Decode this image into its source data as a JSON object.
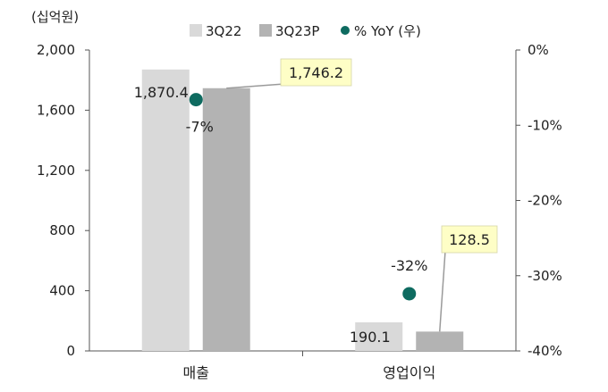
{
  "chart_data": {
    "type": "bar",
    "unit_label": "(십억원)",
    "categories": [
      "매출",
      "영업이익"
    ],
    "series": [
      {
        "name": "3Q22",
        "values": [
          1870.4,
          190.1
        ],
        "labels": [
          "1,870.4",
          "190.1"
        ],
        "color": "#d9d9d9"
      },
      {
        "name": "3Q23P",
        "values": [
          1746.2,
          128.5
        ],
        "labels": [
          "1,746.2",
          "128.5"
        ],
        "color": "#b3b3b3"
      }
    ],
    "yoy": {
      "name": "% YoY (우)",
      "values": [
        -6.6,
        -32.4
      ],
      "labels": [
        "-7%",
        "-32%"
      ],
      "color": "#0e6b60"
    },
    "y_left": {
      "min": 0,
      "max": 2000,
      "ticks": [
        0,
        400,
        800,
        1200,
        1600,
        2000
      ],
      "tick_labels": [
        "0",
        "400",
        "800",
        "1,200",
        "1,600",
        "2,000"
      ]
    },
    "y_right": {
      "min": -40,
      "max": 0,
      "ticks": [
        0,
        -10,
        -20,
        -30,
        -40
      ],
      "tick_labels": [
        "0%",
        "-10%",
        "-20%",
        "-30%",
        "-40%"
      ]
    },
    "callout_color": "#fefec6",
    "grid": false,
    "legend_position": "top"
  }
}
